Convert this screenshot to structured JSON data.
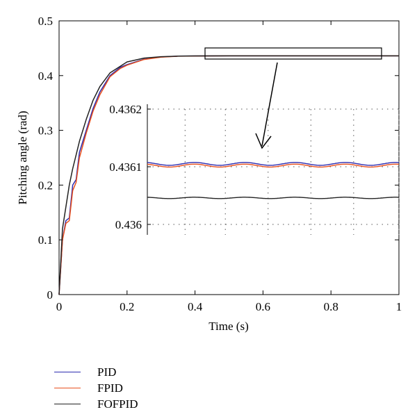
{
  "chart_data": {
    "type": "line",
    "title": "",
    "xlabel": "Time (s)",
    "ylabel": "Pitching angle (rad)",
    "xlim": [
      0,
      1
    ],
    "ylim": [
      0,
      0.5
    ],
    "xticks": [
      0,
      0.2,
      0.4,
      0.6,
      0.8,
      1
    ],
    "xtick_labels": [
      "0",
      "0.2",
      "0.4",
      "0.6",
      "0.8",
      "1"
    ],
    "yticks": [
      0,
      0.1,
      0.2,
      0.3,
      0.4,
      0.5
    ],
    "ytick_labels": [
      "0",
      "0.1",
      "0.2",
      "0.3",
      "0.4",
      "0.5"
    ],
    "grid": false,
    "legend_position": "below the plot, left",
    "final_value": 0.43605,
    "series": [
      {
        "name": "PID",
        "color": "#2b2bb0",
        "x": [
          0,
          0.01,
          0.02,
          0.03,
          0.04,
          0.05,
          0.06,
          0.08,
          0.1,
          0.12,
          0.15,
          0.18,
          0.2,
          0.25,
          0.3,
          0.35,
          0.4,
          0.5,
          0.6,
          0.8,
          1.0
        ],
        "y": [
          0,
          0.1,
          0.135,
          0.14,
          0.2,
          0.21,
          0.26,
          0.3,
          0.34,
          0.37,
          0.4,
          0.415,
          0.42,
          0.43,
          0.434,
          0.4355,
          0.4358,
          0.43605,
          0.43605,
          0.43605,
          0.43605
        ]
      },
      {
        "name": "FPID",
        "color": "#e8501e",
        "x": [
          0,
          0.01,
          0.02,
          0.03,
          0.04,
          0.05,
          0.06,
          0.08,
          0.1,
          0.12,
          0.15,
          0.18,
          0.2,
          0.25,
          0.3,
          0.35,
          0.4,
          0.5,
          0.6,
          0.8,
          1.0
        ],
        "y": [
          0,
          0.1,
          0.13,
          0.135,
          0.19,
          0.205,
          0.25,
          0.295,
          0.335,
          0.365,
          0.398,
          0.413,
          0.419,
          0.4295,
          0.4338,
          0.4354,
          0.4358,
          0.43604,
          0.43604,
          0.43604,
          0.43604
        ]
      },
      {
        "name": "FOFPID",
        "color": "#222222",
        "x": [
          0,
          0.01,
          0.02,
          0.03,
          0.04,
          0.05,
          0.06,
          0.08,
          0.1,
          0.12,
          0.15,
          0.2,
          0.25,
          0.3,
          0.35,
          0.4,
          0.5,
          0.6,
          0.8,
          1.0
        ],
        "y": [
          0,
          0.12,
          0.16,
          0.2,
          0.23,
          0.255,
          0.28,
          0.32,
          0.355,
          0.38,
          0.405,
          0.425,
          0.432,
          0.4345,
          0.4355,
          0.43595,
          0.43603,
          0.43603,
          0.43603,
          0.43603
        ]
      }
    ],
    "inset": {
      "ylim": [
        0.43598,
        0.43622
      ],
      "yticks": [
        0.436,
        0.4361,
        0.4362
      ],
      "ytick_labels": [
        "0.436",
        "0.4361",
        "0.4362"
      ],
      "grid": true,
      "zoom_region_x": [
        0.43,
        0.95
      ],
      "series": [
        {
          "name": "PID",
          "baseline": 0.436105,
          "amplitude": 2.5e-06,
          "periods": 5,
          "color": "#2b2bb0"
        },
        {
          "name": "FPID",
          "baseline": 0.436102,
          "amplitude": 2.5e-06,
          "periods": 5,
          "color": "#e8501e"
        },
        {
          "name": "FOFPID",
          "baseline": 0.436046,
          "amplitude": 1.2e-06,
          "periods": 5,
          "color": "#222222"
        }
      ]
    }
  }
}
